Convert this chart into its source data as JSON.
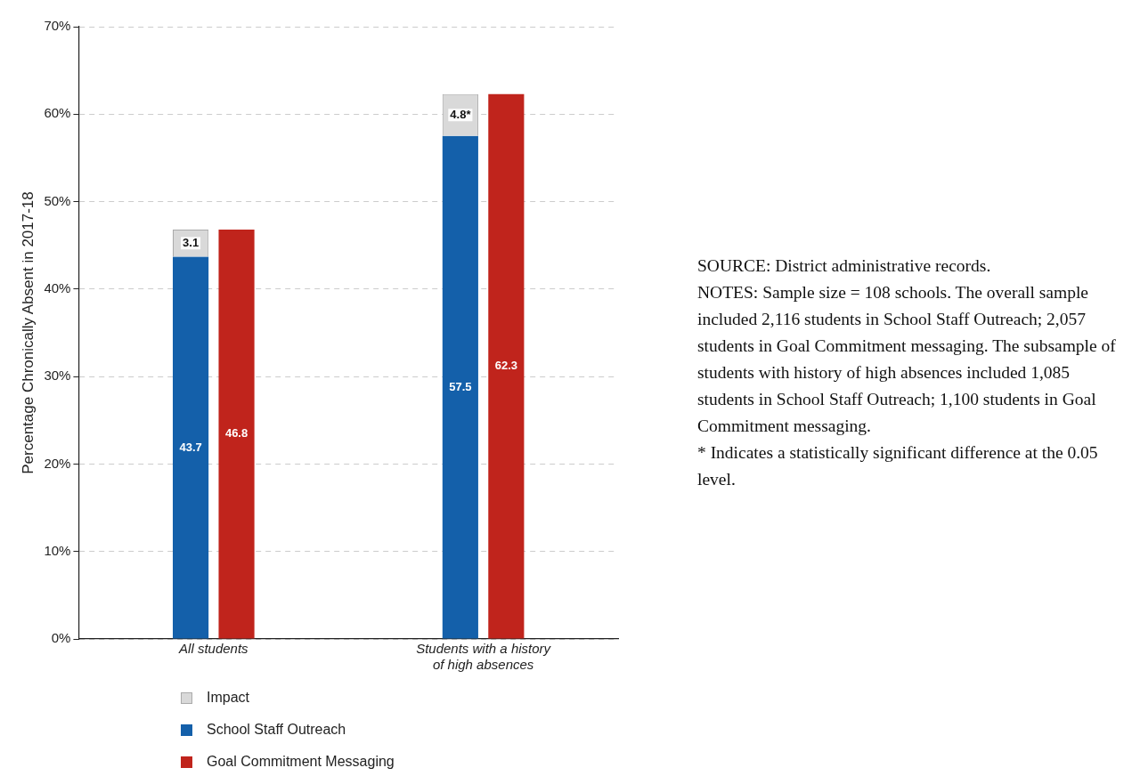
{
  "chart_data": {
    "type": "bar",
    "ylabel": "Percentage Chronically Absent in 2017-18",
    "categories": [
      "All students",
      "Students with a history of high absences"
    ],
    "series": [
      {
        "name": "Impact",
        "color": "#d9d9d9",
        "values": [
          3.1,
          4.8
        ],
        "base": [
          43.7,
          57.5
        ],
        "value_labels": [
          "3.1",
          "4.8*"
        ]
      },
      {
        "name": "School Staff Outreach",
        "color": "#1460aa",
        "values": [
          43.7,
          57.5
        ],
        "value_labels": [
          "43.7",
          "57.5"
        ]
      },
      {
        "name": "Goal Commitment Messaging",
        "color": "#c0241c",
        "values": [
          46.8,
          62.3
        ],
        "value_labels": [
          "46.8",
          "62.3"
        ]
      }
    ],
    "ylim": [
      0,
      70
    ],
    "yticks": [
      {
        "value": 0,
        "label": "0%"
      },
      {
        "value": 10,
        "label": "10%"
      },
      {
        "value": 20,
        "label": "20%"
      },
      {
        "value": 30,
        "label": "30%"
      },
      {
        "value": 40,
        "label": "40%"
      },
      {
        "value": 50,
        "label": "50%"
      },
      {
        "value": 60,
        "label": "60%"
      },
      {
        "value": 70,
        "label": "70%"
      }
    ],
    "grid": "y",
    "legend": "bottom left",
    "annotations": [
      "SOURCE: District administrative records.",
      "NOTES: Sample size = 108 schools. The overall sample included 2,116 students in School Staff Outreach; 2,057 students in Goal Commitment messaging. The subsample of students with history of high absences included 1,085 students in School Staff Outreach; 1,100 students in Goal Commitment messaging.",
      "* Indicates a statistically significant difference at the 0.05 level."
    ]
  }
}
